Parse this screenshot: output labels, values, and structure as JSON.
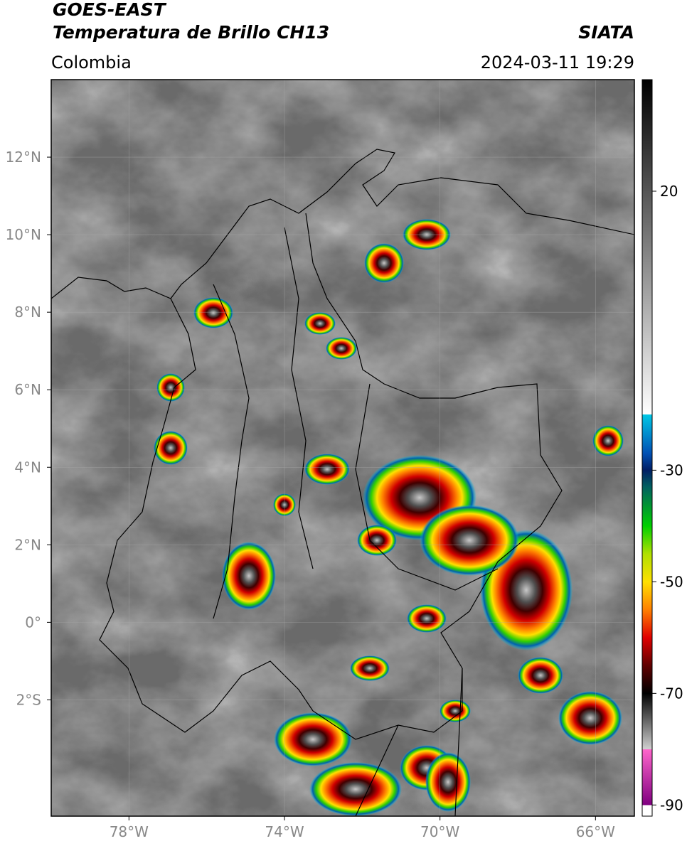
{
  "header": {
    "title": "GOES-EAST",
    "subtitle": "Temperatura de Brillo CH13",
    "region": "Colombia",
    "source": "SIATA",
    "datetime": "2024-03-11 19:29"
  },
  "map": {
    "xlim": [
      -80,
      -65
    ],
    "ylim": [
      -5,
      14
    ],
    "xticks": [
      {
        "value": -78,
        "label": "78°W"
      },
      {
        "value": -74,
        "label": "74°W"
      },
      {
        "value": -70,
        "label": "70°W"
      },
      {
        "value": -66,
        "label": "66°W"
      }
    ],
    "yticks": [
      {
        "value": 12,
        "label": "12°N"
      },
      {
        "value": 10,
        "label": "10°N"
      },
      {
        "value": 8,
        "label": "8°N"
      },
      {
        "value": 6,
        "label": "6°N"
      },
      {
        "value": 4,
        "label": "4°N"
      },
      {
        "value": 2,
        "label": "2°N"
      },
      {
        "value": 0,
        "label": "0°"
      },
      {
        "value": -2,
        "label": "2°S"
      }
    ],
    "grid": true
  },
  "colorbar": {
    "lim": [
      -92,
      40
    ],
    "ticks": [
      20,
      -30,
      -50,
      -70,
      -90
    ],
    "colormap": [
      {
        "value": 40,
        "color": "#000000"
      },
      {
        "value": -20,
        "color": "#ffffff"
      },
      {
        "value": -20,
        "color": "#00c8e6"
      },
      {
        "value": -27,
        "color": "#0050b4"
      },
      {
        "value": -30,
        "color": "#001e64"
      },
      {
        "value": -33,
        "color": "#006060"
      },
      {
        "value": -40,
        "color": "#00d000"
      },
      {
        "value": -45,
        "color": "#b0e000"
      },
      {
        "value": -50,
        "color": "#ffe000"
      },
      {
        "value": -55,
        "color": "#ff8000"
      },
      {
        "value": -60,
        "color": "#e00000"
      },
      {
        "value": -65,
        "color": "#600000"
      },
      {
        "value": -70,
        "color": "#000000"
      },
      {
        "value": -80,
        "color": "#d0d0d0"
      },
      {
        "value": -80,
        "color": "#ff66cc"
      },
      {
        "value": -90,
        "color": "#800080"
      },
      {
        "value": -90,
        "color": "#ffffff"
      },
      {
        "value": -92,
        "color": "#ffffff"
      }
    ]
  }
}
